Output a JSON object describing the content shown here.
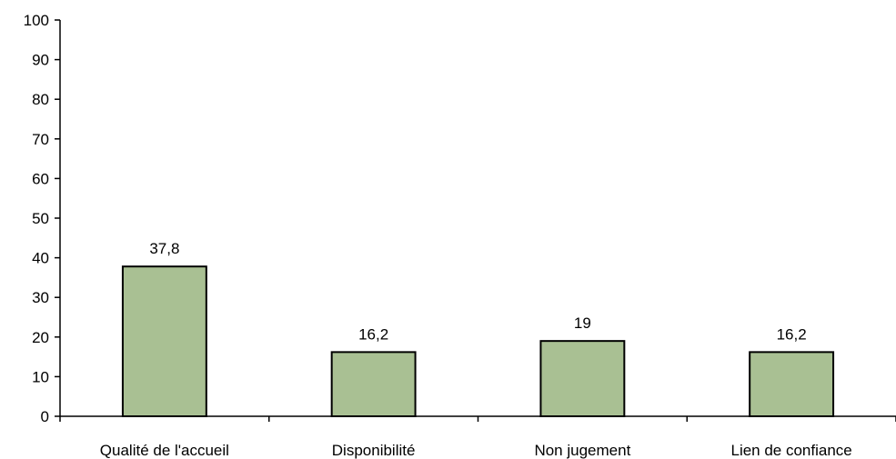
{
  "chart_data": {
    "type": "bar",
    "categories": [
      "Qualité de l'accueil",
      "Disponibilité",
      "Non jugement",
      "Lien de confiance"
    ],
    "values": [
      37.8,
      16.2,
      19,
      16.2
    ],
    "value_labels": [
      "37,8",
      "16,2",
      "19",
      "16,2"
    ],
    "yticks": [
      "0",
      "10",
      "20",
      "30",
      "40",
      "50",
      "60",
      "70",
      "80",
      "90",
      "100"
    ],
    "ylim": [
      0,
      100
    ],
    "grid": false,
    "legend": "none",
    "bar_color": "#a9c093",
    "bar_edge_color": "#000000"
  }
}
